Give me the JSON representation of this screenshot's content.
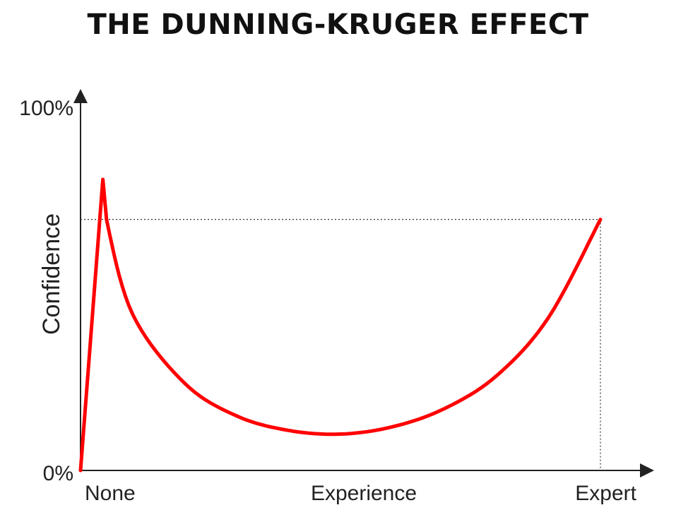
{
  "chart_data": {
    "type": "line",
    "title": "THE DUNNING-KRUGER EFFECT",
    "xlabel": "Experience",
    "ylabel": "Confidence",
    "x_tick_labels": [
      "None",
      "Expert"
    ],
    "y_tick_labels": [
      "0%",
      "100%"
    ],
    "xlim": [
      0,
      100
    ],
    "ylim": [
      0,
      100
    ],
    "grid": false,
    "legend": "none",
    "line_color": "#ff0000",
    "series": [
      {
        "x": [
          0,
          4.3,
          5.0,
          10,
          20,
          30,
          40,
          50,
          60,
          70,
          80,
          90,
          100
        ],
        "y": [
          0,
          80,
          69,
          43,
          24,
          15,
          11,
          10,
          12,
          17,
          26,
          42,
          69
        ]
      }
    ],
    "reference_point": {
      "x": 100,
      "y": 69
    }
  }
}
